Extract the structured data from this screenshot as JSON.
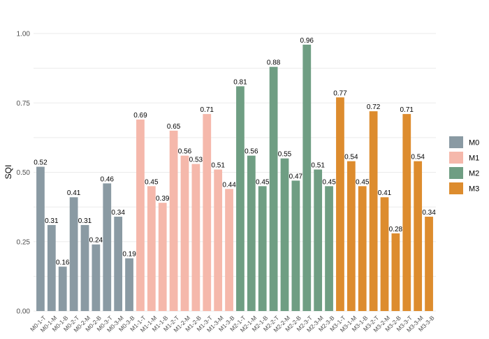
{
  "chart_data": {
    "type": "bar",
    "ylabel": "SQI",
    "xlabel": "",
    "ylim": [
      0,
      1
    ],
    "yticks": [
      "0.00",
      "0.25",
      "0.50",
      "0.75",
      "1.00"
    ],
    "legend_position": "right",
    "grid": true,
    "groups": [
      {
        "name": "M0",
        "color": "#8a9aa3"
      },
      {
        "name": "M1",
        "color": "#f5b8ab"
      },
      {
        "name": "M2",
        "color": "#6f9e83"
      },
      {
        "name": "M3",
        "color": "#dd8c2e"
      }
    ],
    "bars": [
      {
        "category": "M0-1-T",
        "group": "M0",
        "value": 0.52,
        "label": "0.52"
      },
      {
        "category": "M0-1-M",
        "group": "M0",
        "value": 0.31,
        "label": "0.31"
      },
      {
        "category": "M0-1-B",
        "group": "M0",
        "value": 0.16,
        "label": "0.16"
      },
      {
        "category": "M0-2-T",
        "group": "M0",
        "value": 0.41,
        "label": "0.41"
      },
      {
        "category": "M0-2-M",
        "group": "M0",
        "value": 0.31,
        "label": "0.31"
      },
      {
        "category": "M0-2-B",
        "group": "M0",
        "value": 0.24,
        "label": "0.24"
      },
      {
        "category": "M0-3-T",
        "group": "M0",
        "value": 0.46,
        "label": "0.46"
      },
      {
        "category": "M0-3-M",
        "group": "M0",
        "value": 0.34,
        "label": "0.34"
      },
      {
        "category": "M0-3-B",
        "group": "M0",
        "value": 0.19,
        "label": "0.19"
      },
      {
        "category": "M1-1-T",
        "group": "M1",
        "value": 0.69,
        "label": "0.69"
      },
      {
        "category": "M1-1-M",
        "group": "M1",
        "value": 0.45,
        "label": "0.45"
      },
      {
        "category": "M1-1-B",
        "group": "M1",
        "value": 0.39,
        "label": "0.39"
      },
      {
        "category": "M1-2-T",
        "group": "M1",
        "value": 0.65,
        "label": "0.65"
      },
      {
        "category": "M1-2-M",
        "group": "M1",
        "value": 0.56,
        "label": "0.56"
      },
      {
        "category": "M1-2-B",
        "group": "M1",
        "value": 0.53,
        "label": "0.53"
      },
      {
        "category": "M1-3-T",
        "group": "M1",
        "value": 0.71,
        "label": "0.71"
      },
      {
        "category": "M1-3-M",
        "group": "M1",
        "value": 0.51,
        "label": "0.51"
      },
      {
        "category": "M1-3-B",
        "group": "M1",
        "value": 0.44,
        "label": "0.44"
      },
      {
        "category": "M2-1-T",
        "group": "M2",
        "value": 0.81,
        "label": "0.81"
      },
      {
        "category": "M2-1-M",
        "group": "M2",
        "value": 0.56,
        "label": "0.56"
      },
      {
        "category": "M2-1-B",
        "group": "M2",
        "value": 0.45,
        "label": "0.45"
      },
      {
        "category": "M2-2-T",
        "group": "M2",
        "value": 0.88,
        "label": "0.88"
      },
      {
        "category": "M2-2-M",
        "group": "M2",
        "value": 0.55,
        "label": "0.55"
      },
      {
        "category": "M2-2-B",
        "group": "M2",
        "value": 0.47,
        "label": "0.47"
      },
      {
        "category": "M2-3-T",
        "group": "M2",
        "value": 0.96,
        "label": "0.96"
      },
      {
        "category": "M2-3-M",
        "group": "M2",
        "value": 0.51,
        "label": "0.51"
      },
      {
        "category": "M2-3-B",
        "group": "M2",
        "value": 0.45,
        "label": "0.45"
      },
      {
        "category": "M3-1-T",
        "group": "M3",
        "value": 0.77,
        "label": "0.77"
      },
      {
        "category": "M3-1-M",
        "group": "M3",
        "value": 0.54,
        "label": "0.54"
      },
      {
        "category": "M3-1-B",
        "group": "M3",
        "value": 0.45,
        "label": "0.45"
      },
      {
        "category": "M3-2-T",
        "group": "M3",
        "value": 0.72,
        "label": "0.72"
      },
      {
        "category": "M3-2-M",
        "group": "M3",
        "value": 0.41,
        "label": "0.41"
      },
      {
        "category": "M3-2-B",
        "group": "M3",
        "value": 0.28,
        "label": "0.28"
      },
      {
        "category": "M3-3-T",
        "group": "M3",
        "value": 0.71,
        "label": "0.71"
      },
      {
        "category": "M3-3-M",
        "group": "M3",
        "value": 0.54,
        "label": "0.54"
      },
      {
        "category": "M3-3-B",
        "group": "M3",
        "value": 0.34,
        "label": "0.34"
      }
    ]
  }
}
